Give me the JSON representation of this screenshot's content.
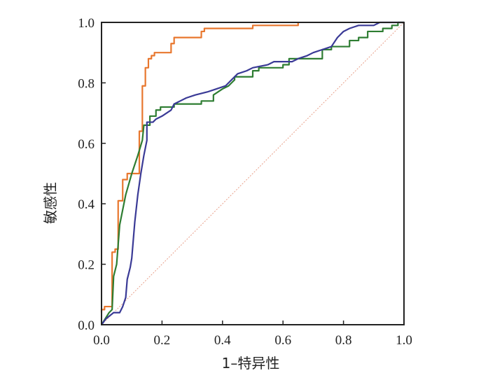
{
  "chart_data": {
    "type": "line",
    "title": "",
    "xlabel": "1–特异性",
    "ylabel": "敏感性",
    "xlim": [
      0,
      1
    ],
    "ylim": [
      0,
      1
    ],
    "xticks": [
      "0.0",
      "0.2",
      "0.4",
      "0.6",
      "0.8",
      "1.0"
    ],
    "yticks": [
      "0.0",
      "0.2",
      "0.4",
      "0.6",
      "0.8",
      "1.0"
    ],
    "grid": false,
    "legend": "none",
    "reference_line": {
      "from": [
        0,
        0
      ],
      "to": [
        1,
        1
      ],
      "color": "#e8a08a",
      "style": "dotted"
    },
    "series": [
      {
        "name": "orange",
        "color": "#e8772e",
        "step": true,
        "points": [
          [
            0,
            0.04
          ],
          [
            0,
            0.05
          ],
          [
            0.01,
            0.05
          ],
          [
            0.01,
            0.06
          ],
          [
            0.035,
            0.06
          ],
          [
            0.035,
            0.24
          ],
          [
            0.045,
            0.24
          ],
          [
            0.045,
            0.25
          ],
          [
            0.055,
            0.25
          ],
          [
            0.055,
            0.41
          ],
          [
            0.07,
            0.41
          ],
          [
            0.07,
            0.48
          ],
          [
            0.085,
            0.48
          ],
          [
            0.085,
            0.5
          ],
          [
            0.125,
            0.5
          ],
          [
            0.125,
            0.64
          ],
          [
            0.135,
            0.64
          ],
          [
            0.135,
            0.79
          ],
          [
            0.145,
            0.79
          ],
          [
            0.145,
            0.85
          ],
          [
            0.155,
            0.85
          ],
          [
            0.155,
            0.88
          ],
          [
            0.165,
            0.88
          ],
          [
            0.165,
            0.89
          ],
          [
            0.175,
            0.89
          ],
          [
            0.175,
            0.9
          ],
          [
            0.23,
            0.9
          ],
          [
            0.23,
            0.93
          ],
          [
            0.24,
            0.93
          ],
          [
            0.24,
            0.95
          ],
          [
            0.25,
            0.95
          ],
          [
            0.33,
            0.95
          ],
          [
            0.33,
            0.97
          ],
          [
            0.34,
            0.97
          ],
          [
            0.34,
            0.98
          ],
          [
            0.5,
            0.98
          ],
          [
            0.5,
            0.99
          ],
          [
            0.65,
            0.99
          ],
          [
            0.65,
            1.0
          ]
        ]
      },
      {
        "name": "green",
        "color": "#2e7d32",
        "step": false,
        "points": [
          [
            0,
            0
          ],
          [
            0.025,
            0.04
          ],
          [
            0.035,
            0.05
          ],
          [
            0.04,
            0.16
          ],
          [
            0.05,
            0.2
          ],
          [
            0.06,
            0.33
          ],
          [
            0.08,
            0.43
          ],
          [
            0.1,
            0.5
          ],
          [
            0.12,
            0.56
          ],
          [
            0.135,
            0.61
          ],
          [
            0.14,
            0.66
          ],
          [
            0.16,
            0.66
          ],
          [
            0.16,
            0.69
          ],
          [
            0.18,
            0.69
          ],
          [
            0.18,
            0.71
          ],
          [
            0.195,
            0.71
          ],
          [
            0.195,
            0.72
          ],
          [
            0.24,
            0.72
          ],
          [
            0.24,
            0.73
          ],
          [
            0.33,
            0.73
          ],
          [
            0.33,
            0.74
          ],
          [
            0.37,
            0.74
          ],
          [
            0.37,
            0.76
          ],
          [
            0.4,
            0.78
          ],
          [
            0.42,
            0.79
          ],
          [
            0.43,
            0.8
          ],
          [
            0.44,
            0.81
          ],
          [
            0.44,
            0.82
          ],
          [
            0.5,
            0.82
          ],
          [
            0.5,
            0.84
          ],
          [
            0.52,
            0.84
          ],
          [
            0.52,
            0.85
          ],
          [
            0.6,
            0.85
          ],
          [
            0.6,
            0.86
          ],
          [
            0.62,
            0.86
          ],
          [
            0.62,
            0.88
          ],
          [
            0.73,
            0.88
          ],
          [
            0.73,
            0.91
          ],
          [
            0.76,
            0.91
          ],
          [
            0.76,
            0.92
          ],
          [
            0.82,
            0.92
          ],
          [
            0.82,
            0.94
          ],
          [
            0.85,
            0.94
          ],
          [
            0.85,
            0.95
          ],
          [
            0.88,
            0.95
          ],
          [
            0.88,
            0.97
          ],
          [
            0.93,
            0.97
          ],
          [
            0.93,
            0.98
          ],
          [
            0.96,
            0.98
          ],
          [
            0.96,
            0.99
          ],
          [
            0.98,
            0.99
          ],
          [
            0.98,
            1.0
          ],
          [
            1.0,
            1.0
          ]
        ]
      },
      {
        "name": "blue",
        "color": "#3a3a96",
        "step": false,
        "points": [
          [
            0,
            0
          ],
          [
            0.015,
            0.02
          ],
          [
            0.04,
            0.04
          ],
          [
            0.06,
            0.04
          ],
          [
            0.07,
            0.06
          ],
          [
            0.08,
            0.09
          ],
          [
            0.085,
            0.15
          ],
          [
            0.095,
            0.19
          ],
          [
            0.1,
            0.22
          ],
          [
            0.11,
            0.34
          ],
          [
            0.12,
            0.43
          ],
          [
            0.13,
            0.5
          ],
          [
            0.14,
            0.56
          ],
          [
            0.15,
            0.61
          ],
          [
            0.15,
            0.67
          ],
          [
            0.17,
            0.67
          ],
          [
            0.18,
            0.68
          ],
          [
            0.2,
            0.69
          ],
          [
            0.23,
            0.71
          ],
          [
            0.24,
            0.73
          ],
          [
            0.26,
            0.74
          ],
          [
            0.28,
            0.75
          ],
          [
            0.31,
            0.76
          ],
          [
            0.35,
            0.77
          ],
          [
            0.38,
            0.78
          ],
          [
            0.41,
            0.79
          ],
          [
            0.43,
            0.81
          ],
          [
            0.45,
            0.83
          ],
          [
            0.48,
            0.84
          ],
          [
            0.5,
            0.85
          ],
          [
            0.55,
            0.86
          ],
          [
            0.57,
            0.87
          ],
          [
            0.63,
            0.87
          ],
          [
            0.65,
            0.88
          ],
          [
            0.68,
            0.89
          ],
          [
            0.7,
            0.9
          ],
          [
            0.73,
            0.91
          ],
          [
            0.76,
            0.92
          ],
          [
            0.78,
            0.95
          ],
          [
            0.8,
            0.97
          ],
          [
            0.82,
            0.98
          ],
          [
            0.85,
            0.99
          ],
          [
            0.9,
            0.99
          ],
          [
            0.92,
            1.0
          ],
          [
            1.0,
            1.0
          ]
        ]
      }
    ]
  }
}
